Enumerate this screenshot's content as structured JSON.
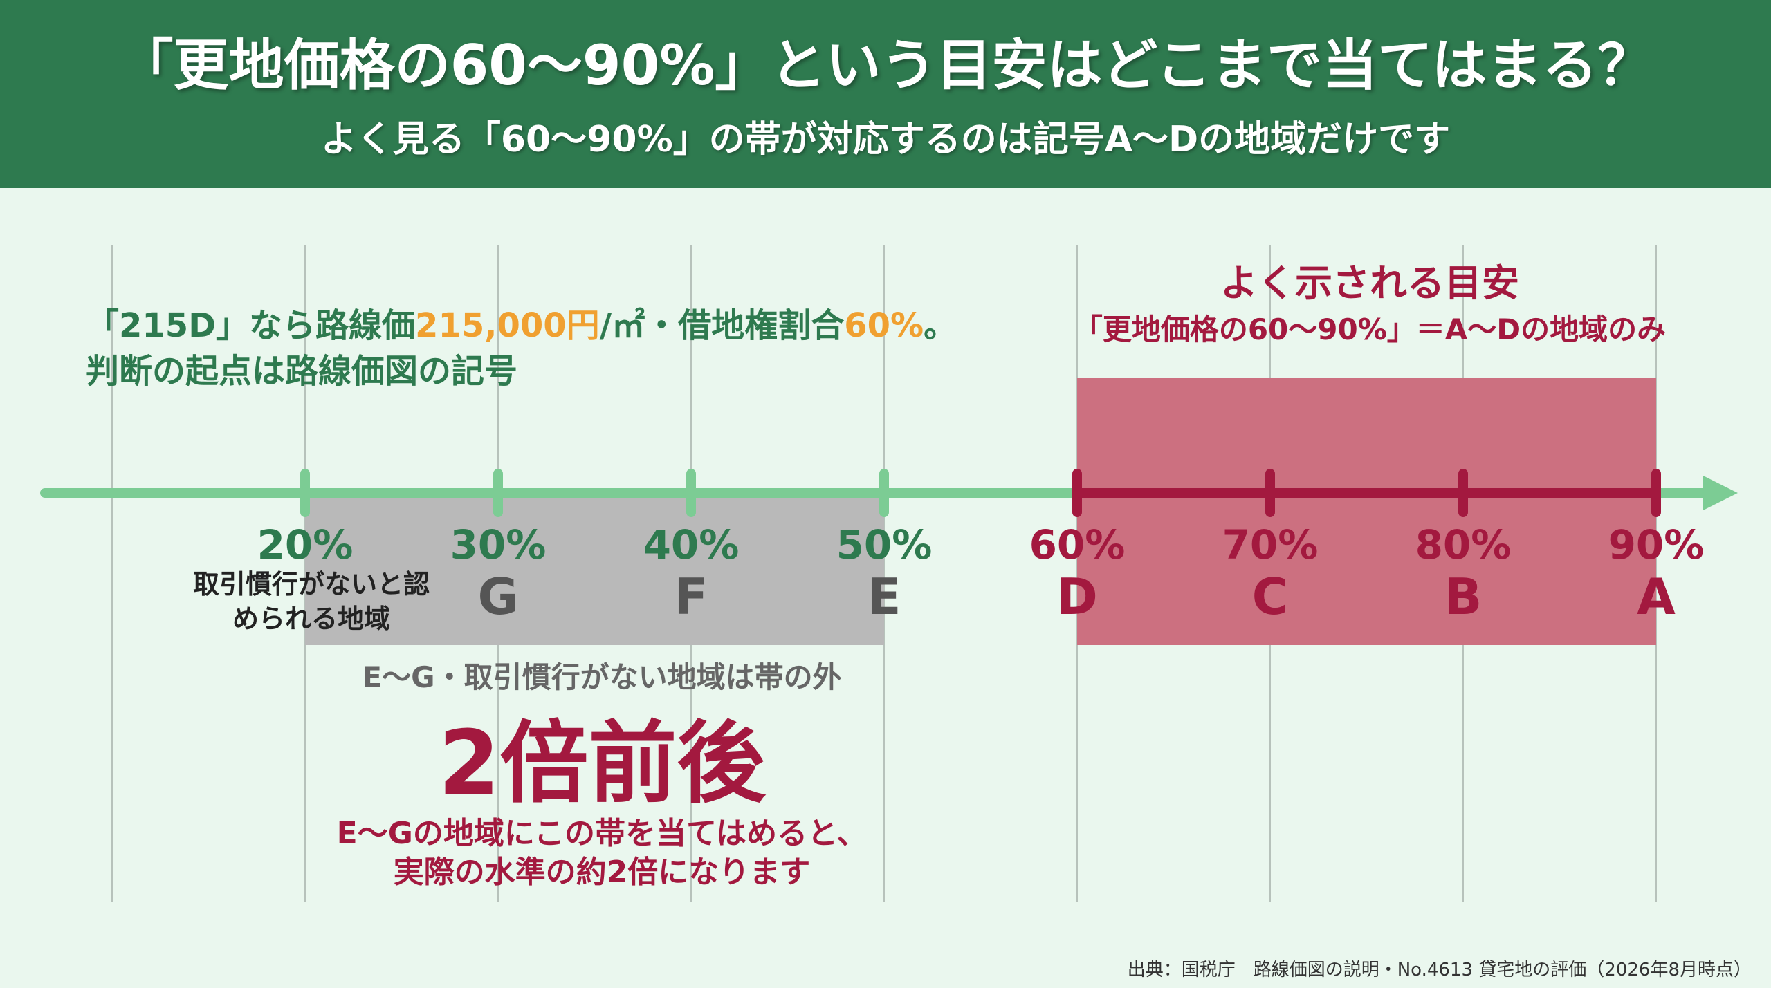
{
  "header": {
    "title": "「更地価格の60〜90%」という目安はどこまで当てはまる？",
    "subtitle": "よく見る「60〜90%」の帯が対応するのは記号A〜Dの地域だけです"
  },
  "example_note": {
    "line1_part1": "「215D」なら路線価",
    "line1_price": "215,000円",
    "line1_part2": "/㎡・借地権割合",
    "line1_ratio": "60%",
    "line1_part3": "。",
    "line2": "判断の起点は路線価図の記号"
  },
  "band_note": {
    "title": "よく示される目安",
    "subtitle": "「更地価格の60〜90%」＝A〜Dの地域のみ"
  },
  "axis": {
    "ticks": [
      {
        "percent": "20%",
        "symbol": "",
        "group": "gray"
      },
      {
        "percent": "30%",
        "symbol": "G",
        "group": "gray"
      },
      {
        "percent": "40%",
        "symbol": "F",
        "group": "gray"
      },
      {
        "percent": "50%",
        "symbol": "E",
        "group": "gray"
      },
      {
        "percent": "60%",
        "symbol": "D",
        "group": "red"
      },
      {
        "percent": "70%",
        "symbol": "C",
        "group": "red"
      },
      {
        "percent": "80%",
        "symbol": "B",
        "group": "red"
      },
      {
        "percent": "90%",
        "symbol": "A",
        "group": "red"
      }
    ],
    "no_custom_label": "取引慣行がないと認められる地域",
    "gray_range": [
      20,
      50
    ],
    "red_range": [
      60,
      90
    ]
  },
  "lower_note": {
    "outside": "E〜G・取引慣行がない地域は帯の外",
    "big": "2倍前後",
    "explain_line1": "E〜Gの地域にこの帯を当てはめると、",
    "explain_line2": "実際の水準の約2倍になります"
  },
  "source": "出典：国税庁　路線価図の説明・No.4613 貸宅地の評価（2026年8月時点）",
  "colors": {
    "header_bg": "#2e7a4f",
    "page_bg": "#eaf7ee",
    "axis_green": "#7ccc94",
    "label_green": "#2e7a4f",
    "accent_red": "#a3193f",
    "red_band": "#cc7080",
    "gray_band": "#b9b9b9",
    "orange": "#f0a030"
  }
}
